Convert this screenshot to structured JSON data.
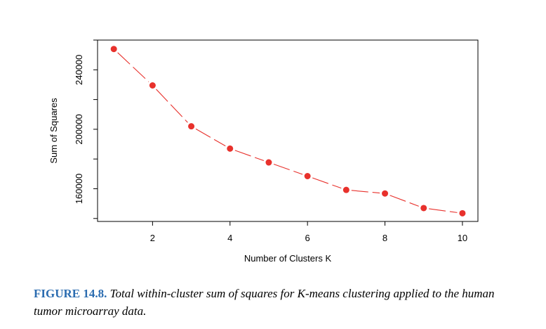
{
  "caption": {
    "label": "FIGURE 14.8.",
    "text": "Total within-cluster sum of squares for K-means clustering applied to the human tumor microarray data."
  },
  "chart_data": {
    "type": "line",
    "title": "",
    "xlabel": "Number of Clusters K",
    "ylabel": "Sum of Squares",
    "x": [
      1,
      2,
      3,
      4,
      5,
      6,
      7,
      8,
      9,
      10
    ],
    "series": [
      {
        "values": [
          254000,
          229500,
          202000,
          187000,
          177700,
          168500,
          159200,
          156800,
          147000,
          143500
        ]
      }
    ],
    "xlim": [
      0.58,
      10.4
    ],
    "ylim": [
      138000,
      260000
    ],
    "xticks": [
      2,
      4,
      6,
      8,
      10
    ],
    "yticks": [
      160000,
      200000,
      240000
    ],
    "yminor_ticks": [
      140000,
      180000,
      220000,
      260000
    ],
    "line_color": "#e8312c",
    "line_style": "dashed",
    "marker": "filled-circle",
    "marker_color": "#e8312c",
    "grid": false
  }
}
